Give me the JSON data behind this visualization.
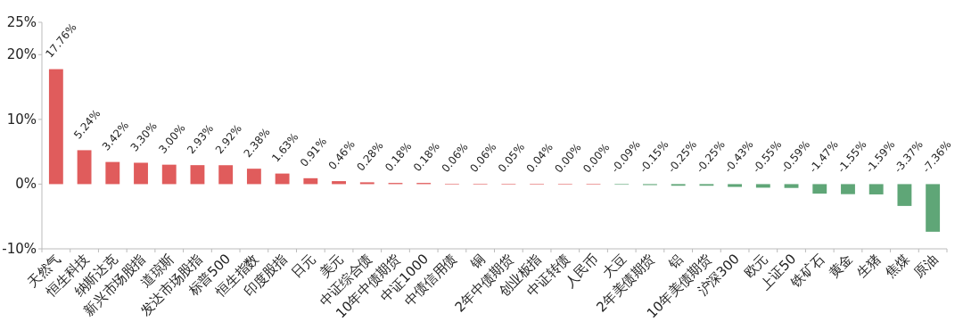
{
  "chart_data": {
    "type": "bar",
    "categories": [
      "天然气",
      "恒生科技",
      "纳斯达克",
      "新兴市场股指",
      "道琼斯",
      "发达市场股指",
      "标普500",
      "恒生指数",
      "印度股指",
      "日元",
      "美元",
      "中证综合债",
      "10年中债期货",
      "中证1000",
      "中债信用债",
      "铜",
      "2年中债期货",
      "创业板指",
      "中证转债",
      "人民币",
      "大豆",
      "2年美债期货",
      "铝",
      "10年美债期货",
      "沪深300",
      "欧元",
      "上证50",
      "铁矿石",
      "黄金",
      "生猪",
      "焦煤",
      "原油"
    ],
    "values": [
      17.76,
      5.24,
      3.42,
      3.3,
      3.0,
      2.93,
      2.92,
      2.38,
      1.63,
      0.91,
      0.46,
      0.28,
      0.18,
      0.18,
      0.06,
      0.06,
      0.05,
      0.04,
      0.0,
      0.0,
      -0.09,
      -0.15,
      -0.25,
      -0.25,
      -0.43,
      -0.55,
      -0.59,
      -1.47,
      -1.55,
      -1.59,
      -3.37,
      -7.36
    ],
    "value_labels": [
      "17.76%",
      "5.24%",
      "3.42%",
      "3.30%",
      "3.00%",
      "2.93%",
      "2.92%",
      "2.38%",
      "1.63%",
      "0.91%",
      "0.46%",
      "0.28%",
      "0.18%",
      "0.18%",
      "0.06%",
      "0.06%",
      "0.05%",
      "0.04%",
      "0.00%",
      "0.00%",
      "-0.09%",
      "-0.15%",
      "-0.25%",
      "-0.25%",
      "-0.43%",
      "-0.55%",
      "-0.59%",
      "-1.47%",
      "-1.55%",
      "-1.59%",
      "-3.37%",
      "-7.36%"
    ],
    "colors": [
      "#e05c5c",
      "#e05c5c",
      "#e05c5c",
      "#e05c5c",
      "#e05c5c",
      "#e05c5c",
      "#e05c5c",
      "#e05c5c",
      "#e05c5c",
      "#e05c5c",
      "#e05c5c",
      "#e05c5c",
      "#e05c5c",
      "#e05c5c",
      "#e05c5c",
      "#e05c5c",
      "#e05c5c",
      "#e05c5c",
      "#e05c5c",
      "#e05c5c",
      "#5fa677",
      "#5fa677",
      "#5fa677",
      "#5fa677",
      "#5fa677",
      "#5fa677",
      "#5fa677",
      "#5fa677",
      "#5fa677",
      "#5fa677",
      "#5fa677",
      "#5fa677"
    ],
    "ylim": [
      -10,
      25
    ],
    "yticks": [
      {
        "value": -10,
        "label": "-10%"
      },
      {
        "value": 0,
        "label": "0%"
      },
      {
        "value": 10,
        "label": "10%"
      },
      {
        "value": 20,
        "label": "20%"
      },
      {
        "value": 25,
        "label": "25%"
      }
    ]
  }
}
